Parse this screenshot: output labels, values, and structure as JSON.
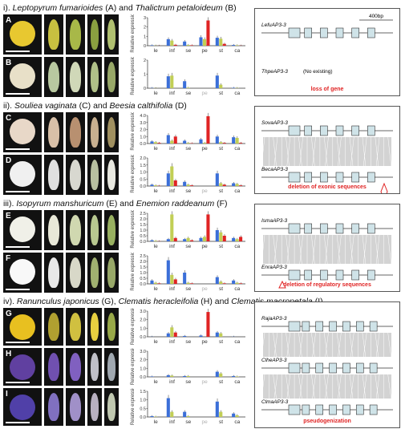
{
  "panels": [
    {
      "title_parts": [
        "i). ",
        "Leptopyrum fumarioides",
        " (A) and ",
        "Thalictrum petaloideum",
        " (B)"
      ],
      "top": 4,
      "photos": [
        {
          "label": "A",
          "colors": [
            "#e8c830",
            "#c8c040",
            "#a8b848",
            "#8aa040",
            "#b0c070"
          ]
        },
        {
          "label": "B",
          "colors": [
            "#e8e0c8",
            "#b8c8a0",
            "#d0d8b8",
            "#b0c088",
            "#98a868"
          ]
        }
      ],
      "charts": [
        {
          "ylim": [
            0,
            3
          ],
          "yticks": [
            "0",
            "1",
            "2",
            "3"
          ],
          "values": [
            [
              0.05,
              0.02,
              0.01
            ],
            [
              0.7,
              0.55,
              0.1
            ],
            [
              0.45,
              0.08,
              0.05
            ],
            [
              0.9,
              0.7,
              2.7
            ],
            [
              0.85,
              0.75,
              0.2
            ],
            [
              0.08,
              0.05,
              0.02
            ]
          ]
        },
        {
          "ylim": [
            0,
            2
          ],
          "yticks": [
            "0",
            "1",
            "2"
          ],
          "values": [
            [
              0.02,
              0.01,
              0.0
            ],
            [
              0.85,
              0.9,
              0.0
            ],
            [
              0.5,
              0.04,
              0.0
            ],
            [
              null,
              null,
              null
            ],
            [
              0.9,
              0.25,
              0.0
            ],
            [
              0.03,
              0.02,
              0.0
            ]
          ]
        }
      ],
      "box": {
        "height": 108,
        "scale": "400bp",
        "genes": [
          {
            "name": "LefuAP3-3",
            "exons": 6
          },
          {
            "name": "ThpeAP3-3",
            "text": "(No existing)"
          }
        ],
        "note": "loss of gene"
      }
    },
    {
      "title_parts": [
        "ii). ",
        "Souliea vaginata",
        " (C) and ",
        "Beesia calthifolia",
        " (D)"
      ],
      "top": 126,
      "photos": [
        {
          "label": "C",
          "colors": [
            "#e8d8c8",
            "#d8c0a8",
            "#b89070",
            "#c8b090",
            "#a09060"
          ]
        },
        {
          "label": "D",
          "colors": [
            "#f0f0f0",
            "#e0e0e0",
            "#d8d8d0",
            "#b8c0a0",
            "#e8e8e0"
          ]
        }
      ],
      "charts": [
        {
          "ylim": [
            0,
            4
          ],
          "yticks": [
            "0.0",
            "1.0",
            "2.0",
            "3.0",
            "4.0"
          ],
          "values": [
            [
              0.3,
              0.2,
              0.1
            ],
            [
              1.2,
              0.4,
              1.0
            ],
            [
              0.4,
              0.1,
              0.05
            ],
            [
              0.6,
              0.1,
              3.9
            ],
            [
              1.0,
              0.2,
              0.1
            ],
            [
              0.9,
              0.8,
              0.1
            ]
          ]
        },
        {
          "ylim": [
            0,
            2
          ],
          "yticks": [
            "0.0",
            "0.5",
            "1.0",
            "1.5",
            "2.0"
          ],
          "values": [
            [
              0.1,
              0.05,
              0.02
            ],
            [
              0.9,
              1.4,
              0.4
            ],
            [
              0.3,
              0.1,
              0.05
            ],
            [
              null,
              null,
              null
            ],
            [
              0.9,
              0.2,
              0.1
            ],
            [
              0.2,
              0.15,
              0.05
            ]
          ]
        }
      ],
      "box": {
        "height": 108,
        "genes": [
          {
            "name": "SovaAP3-3",
            "exons": 6
          },
          {
            "name": "BecaAP3-3",
            "exons": 6
          }
        ],
        "note": "deletion of exonic sequences"
      }
    },
    {
      "title_parts": [
        "iii). ",
        "Isopyrum manshuricum",
        " (E) and ",
        "Enemion raddeanum",
        " (F)"
      ],
      "top": 248,
      "photos": [
        {
          "label": "E",
          "colors": [
            "#f0f0e8",
            "#e8e8d8",
            "#d0d8b0",
            "#b8c890",
            "#98b060"
          ]
        },
        {
          "label": "F",
          "colors": [
            "#f8f8f8",
            "#e8e8e8",
            "#d8d8c8",
            "#a0b070",
            "#98a868"
          ]
        }
      ],
      "charts": [
        {
          "ylim": [
            0,
            2.5
          ],
          "yticks": [
            "0.0",
            "0.5",
            "1.0",
            "1.5",
            "2.0",
            "2.5"
          ],
          "values": [
            [
              0.1,
              0.05,
              0.02
            ],
            [
              0.2,
              2.4,
              0.3
            ],
            [
              0.2,
              0.3,
              0.1
            ],
            [
              0.3,
              0.4,
              2.4
            ],
            [
              1.0,
              0.8,
              0.5
            ],
            [
              0.3,
              0.2,
              0.4
            ]
          ]
        },
        {
          "ylim": [
            0,
            2.5
          ],
          "yticks": [
            "0.0",
            "0.5",
            "1.0",
            "1.5",
            "2.0",
            "2.5"
          ],
          "values": [
            [
              0.3,
              0.1,
              0.05
            ],
            [
              2.1,
              0.8,
              0.4
            ],
            [
              1.0,
              0.1,
              0.05
            ],
            [
              null,
              null,
              null
            ],
            [
              0.6,
              0.2,
              0.05
            ],
            [
              0.3,
              0.1,
              0.05
            ]
          ]
        }
      ],
      "box": {
        "height": 108,
        "genes": [
          {
            "name": "IsmaAP3-3",
            "exons": 6
          },
          {
            "name": "EnraAP3-3",
            "exons": 6
          }
        ],
        "note": "deletion of regulatory sequences"
      }
    },
    {
      "title_parts": [
        "iv). ",
        "Ranunculus japonicus",
        " (G), ",
        "Clematis heracleifolia",
        " (H) and ",
        "Clematis macropetala",
        " (I)"
      ],
      "top": 370,
      "photos": [
        {
          "label": "G",
          "colors": [
            "#e8c020",
            "#b0a030",
            "#d0c040",
            "#e8d040",
            "#98a848"
          ]
        },
        {
          "label": "H",
          "colors": [
            "#6040a0",
            "#7050b0",
            "#8060c0",
            "#c0c0c8",
            "#a0a8b0"
          ]
        },
        {
          "label": "I",
          "colors": [
            "#5040a8",
            "#8070c0",
            "#a090c8",
            "#b8b0c0",
            "#c0c8b0"
          ]
        }
      ],
      "charts": [
        {
          "ylim": [
            0,
            3
          ],
          "yticks": [
            "0.0",
            "1.0",
            "2.0",
            "3.0"
          ],
          "values": [
            [
              0.02,
              0.0,
              0.0
            ],
            [
              0.4,
              1.1,
              0.5
            ],
            [
              0.1,
              0.0,
              0.0
            ],
            [
              0.15,
              0.0,
              2.9
            ],
            [
              0.5,
              0.4,
              0.0
            ],
            [
              0.02,
              0.0,
              0.0
            ]
          ]
        },
        {
          "ylim": [
            0,
            3
          ],
          "yticks": [
            "0.0",
            "1.0",
            "2.0",
            "3.0"
          ],
          "values": [
            [
              0.05,
              0.0,
              0.0
            ],
            [
              0.2,
              0.15,
              0.0
            ],
            [
              0.1,
              0.1,
              0.0
            ],
            [
              null,
              null,
              null
            ],
            [
              0.6,
              0.4,
              0.0
            ],
            [
              0.1,
              0.05,
              0.0
            ]
          ]
        },
        {
          "ylim": [
            0,
            1.5
          ],
          "yticks": [
            "0.0",
            "0.5",
            "1.0",
            "1.5"
          ],
          "values": [
            [
              0.05,
              0.02,
              0.0
            ],
            [
              1.1,
              0.3,
              0.0
            ],
            [
              0.3,
              0.05,
              0.0
            ],
            [
              null,
              null,
              null
            ],
            [
              0.9,
              0.3,
              0.0
            ],
            [
              0.2,
              0.1,
              0.0
            ]
          ]
        }
      ],
      "box": {
        "height": 156,
        "genes": [
          {
            "name": "RajaAP3-3",
            "exons": 7
          },
          {
            "name": "ClheAP3-3",
            "exons": 7
          },
          {
            "name": "ClmaAP3-3",
            "exons": 7
          }
        ],
        "note": "pseudogenization"
      }
    }
  ],
  "chart_data": [
    {
      "type": "bar",
      "categories": [
        "le",
        "inf",
        "se",
        "pe",
        "st",
        "ca"
      ],
      "ylabel": "Relative expression",
      "ylim": [
        0,
        3
      ],
      "series": [
        {
          "values": [
            0.05,
            0.7,
            0.45,
            0.9,
            0.85,
            0.08
          ]
        },
        {
          "values": [
            0.02,
            0.55,
            0.08,
            0.7,
            0.75,
            0.05
          ]
        },
        {
          "values": [
            0.01,
            0.1,
            0.05,
            2.7,
            0.2,
            0.02
          ]
        }
      ]
    }
  ],
  "categories": [
    "le",
    "inf",
    "se",
    "pe",
    "st",
    "ca"
  ],
  "ylabel": "Relative expression",
  "colors": {
    "blue": "#3b6fd8",
    "green": "#c2cf55",
    "red": "#e02424",
    "missing": "#b0b0b0"
  }
}
